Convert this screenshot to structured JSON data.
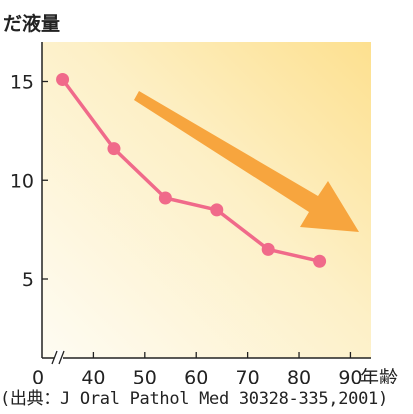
{
  "chart_data": {
    "type": "line",
    "title": "",
    "ylabel": "だ液量",
    "xlabel": "年齢",
    "x_axis_break": true,
    "x_first_tick_label": "0",
    "x": [
      34,
      44,
      54,
      64,
      74,
      84
    ],
    "series": [
      {
        "values": [
          15.1,
          11.6,
          9.1,
          8.5,
          6.5,
          5.9
        ]
      }
    ],
    "xticks": [
      40,
      50,
      60,
      70,
      80,
      90
    ],
    "yticks": [
      5,
      10,
      15
    ],
    "xlim": [
      30,
      94
    ],
    "ylim": [
      1,
      17
    ],
    "grid": false,
    "trend_arrow": "down-right",
    "colors": {
      "line": "#f06a8a",
      "arrow": "#f7a53e",
      "bg_top": "#fde79f",
      "bg_bottom": "#fefbf0"
    }
  },
  "source": "(出典：J Oral Pathol Med 30328-335,2001)"
}
